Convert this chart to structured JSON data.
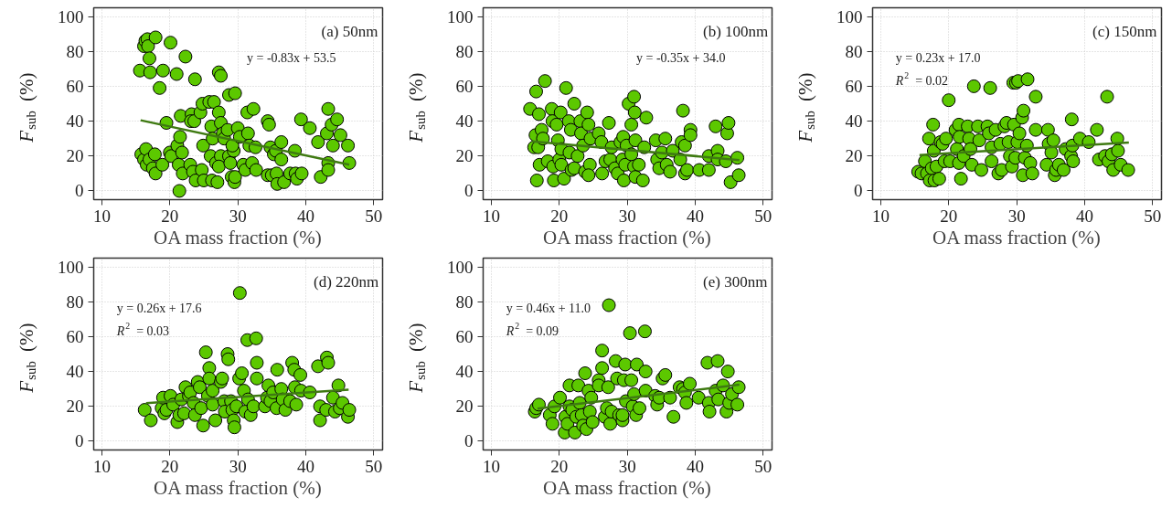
{
  "chart_data": [
    {
      "type": "scatter",
      "title": "(a) 50nm",
      "xlabel": "OA mass fraction (%)",
      "ylabel": "F$_{sub}$ (%)",
      "xlim": [
        8.8,
        51.3
      ],
      "ylim": [
        -5,
        105
      ],
      "xticks": [
        10,
        20,
        30,
        40,
        50
      ],
      "yticks": [
        0,
        20,
        40,
        60,
        80,
        100
      ],
      "grid": true,
      "annotations": [
        "y = -0.83x + 53.5"
      ],
      "series": [
        {
          "marker": "circle",
          "color": "#5cc800",
          "x": [
            15.6,
            16.2,
            16.4,
            16.7,
            16.8,
            17.0,
            17.1,
            17.9,
            18.5,
            19.0,
            20.1,
            21.0,
            22.3,
            23.7,
            27.2,
            27.5,
            28.7,
            29.6,
            15.8,
            16.2,
            16.5,
            16.6,
            17.0,
            17.5,
            17.8,
            17.9,
            18.9,
            19.5,
            20.0,
            20.2,
            21.1,
            21.3,
            21.4,
            21.5,
            21.6,
            21.8,
            21.9,
            23.2,
            23.1,
            23.6,
            23.0,
            23.4,
            23.8,
            24.5,
            24.8,
            24.9,
            24.7,
            25.0,
            25.8,
            26.5,
            26.1,
            26.3,
            26.0,
            26.2,
            26.8,
            27.2,
            27.5,
            27.0,
            27.5,
            27.2,
            27.8,
            28.0,
            28.5,
            28.7,
            28.9,
            29.1,
            29.5,
            29.6,
            29.4,
            29.2,
            30.0,
            30.3,
            30.8,
            31.1,
            31.4,
            31.5,
            31.7,
            32.3,
            32.1,
            32.6,
            32.7,
            34.4,
            34.6,
            34.8,
            34.4,
            35.0,
            35.3,
            35.6,
            35.7,
            35.8,
            36.4,
            36.4,
            36.8,
            37.7,
            38.4,
            38.5,
            38.7,
            39.4,
            39.3,
            40.6,
            41.8,
            42.2,
            43.1,
            43.3,
            43.3,
            43.3,
            43.8,
            44.0,
            44.6,
            45.1,
            46.2,
            46.4
          ],
          "values": [
            69,
            83,
            86,
            87,
            83,
            76,
            68,
            88,
            59,
            69,
            85,
            67,
            77,
            64,
            68,
            66,
            55,
            56,
            21,
            18,
            24,
            15,
            18,
            13,
            21,
            10,
            15,
            39,
            22,
            20,
            26,
            15,
            0,
            31,
            43,
            22,
            10,
            44,
            40,
            40,
            15,
            11,
            6,
            45,
            50,
            26,
            12,
            6,
            51,
            51,
            37,
            30,
            20,
            6,
            16,
            45,
            39,
            5,
            20,
            14,
            33,
            30,
            35,
            20,
            16,
            8,
            5,
            8,
            23,
            26,
            36,
            31,
            15,
            12,
            45,
            33,
            26,
            47,
            16,
            25,
            12,
            40,
            38,
            25,
            9,
            9,
            21,
            23,
            10,
            4,
            28,
            18,
            5,
            10,
            23,
            10,
            7,
            10,
            41,
            36,
            28,
            8,
            33,
            47,
            16,
            12,
            38,
            26,
            41,
            32,
            26,
            16
          ]
        },
        {
          "type": "line",
          "color": "#3f7a12",
          "x": [
            15.7,
            46.4
          ],
          "values": [
            40.5,
            15.0
          ]
        }
      ]
    },
    {
      "type": "scatter",
      "title": "(b) 100nm",
      "xlabel": "OA mass fraction (%)",
      "ylabel": "F$_{sub}$ (%)",
      "xlim": [
        8.8,
        51.3
      ],
      "ylim": [
        -5,
        105
      ],
      "xticks": [
        10,
        20,
        30,
        40,
        50
      ],
      "yticks": [
        0,
        20,
        40,
        60,
        80,
        100
      ],
      "grid": true,
      "annotations": [
        "y = -0.35x + 34.0"
      ],
      "series": [
        {
          "marker": "circle",
          "color": "#5cc800",
          "x": [
            15.7,
            16.3,
            16.5,
            16.6,
            16.7,
            16.9,
            17.0,
            17.1,
            17.4,
            17.6,
            17.9,
            18.3,
            18.9,
            19.0,
            19.1,
            19.2,
            19.6,
            19.8,
            20.2,
            20.0,
            20.3,
            20.3,
            20.7,
            21.0,
            21.4,
            21.5,
            21.7,
            21.8,
            22.2,
            22.2,
            22.7,
            23.1,
            23.2,
            23.5,
            23.8,
            24.1,
            24.3,
            24.6,
            24.5,
            24.3,
            25.8,
            26.2,
            26.3,
            26.8,
            27.3,
            27.5,
            27.7,
            28.2,
            28.6,
            29.0,
            29.3,
            29.4,
            29.5,
            29.7,
            29.9,
            30.2,
            30.6,
            30.6,
            31.0,
            31.1,
            31.2,
            31.0,
            31.2,
            31.7,
            32.3,
            32.5,
            32.8,
            34.2,
            34.4,
            34.7,
            35.1,
            35.6,
            35.8,
            36.3,
            36.7,
            37.8,
            38.0,
            38.2,
            38.5,
            38.5,
            38.8,
            39.3,
            39.3,
            40.6,
            42.0,
            42.0,
            43.0,
            43.3,
            43.3,
            44.5,
            44.7,
            44.9,
            45.2,
            46.2,
            46.4
          ],
          "values": [
            47,
            25,
            32,
            57,
            6,
            25,
            44,
            15,
            35,
            30,
            63,
            17,
            47,
            40,
            14,
            6,
            38,
            29,
            45,
            18,
            24,
            15,
            7,
            59,
            40,
            22,
            35,
            12,
            50,
            13,
            20,
            40,
            33,
            26,
            11,
            45,
            38,
            30,
            15,
            9,
            33,
            28,
            10,
            17,
            39,
            18,
            25,
            13,
            10,
            28,
            18,
            31,
            6,
            15,
            26,
            50,
            38,
            21,
            54,
            45,
            29,
            14,
            8,
            15,
            6,
            25,
            42,
            29,
            18,
            13,
            22,
            30,
            15,
            11,
            23,
            18,
            28,
            46,
            26,
            10,
            12,
            35,
            32,
            12,
            20,
            12,
            37,
            23,
            18,
            17,
            33,
            39,
            5,
            19,
            9
          ]
        },
        {
          "type": "line",
          "color": "#3f7a12",
          "x": [
            16.0,
            46.5
          ],
          "values": [
            28.4,
            17.7
          ]
        }
      ]
    },
    {
      "type": "scatter",
      "title": "(c) 150nm",
      "xlabel": "OA mass fraction (%)",
      "ylabel": "F$_{sub}$ (%)",
      "xlim": [
        8.8,
        51.3
      ],
      "ylim": [
        -5,
        105
      ],
      "xticks": [
        10,
        20,
        30,
        40,
        50
      ],
      "yticks": [
        0,
        20,
        40,
        60,
        80,
        100
      ],
      "grid": true,
      "annotations": [
        "y = 0.23x + 17.0",
        "R$^{2}$ = 0.02"
      ],
      "series": [
        {
          "marker": "circle",
          "color": "#5cc800",
          "x": [
            15.5,
            16.0,
            16.5,
            16.8,
            17.1,
            17.2,
            17.5,
            17.7,
            17.8,
            17.9,
            18.2,
            18.6,
            18.8,
            19.1,
            19.4,
            19.6,
            20.0,
            20.2,
            21.0,
            21.2,
            21.5,
            21.6,
            21.5,
            21.8,
            22.2,
            22.8,
            23.0,
            23.2,
            23.4,
            23.7,
            24.3,
            24.5,
            24.8,
            25.7,
            25.9,
            26.1,
            26.3,
            26.3,
            26.9,
            27.3,
            27.6,
            27.8,
            28.2,
            28.5,
            28.8,
            29.0,
            29.3,
            29.5,
            29.6,
            29.9,
            30.2,
            30.1,
            29.8,
            30.4,
            30.8,
            31.0,
            30.9,
            31.2,
            31.6,
            31.5,
            32.0,
            32.3,
            32.8,
            32.8,
            34.4,
            34.6,
            34.7,
            35.1,
            35.4,
            35.6,
            35.8,
            36.2,
            36.9,
            37.2,
            38.0,
            38.1,
            38.2,
            38.3,
            39.3,
            40.6,
            41.8,
            42.1,
            43.3,
            43.0,
            43.5,
            44.0,
            44.2,
            44.8,
            44.9,
            45.3,
            46.4
          ],
          "values": [
            11,
            10,
            17,
            10,
            30,
            6,
            13,
            38,
            23,
            6,
            14,
            7,
            28,
            27,
            17,
            30,
            52,
            17,
            35,
            24,
            38,
            31,
            16,
            7,
            20,
            37,
            30,
            24,
            15,
            60,
            37,
            29,
            12,
            37,
            33,
            59,
            25,
            17,
            35,
            10,
            27,
            12,
            37,
            39,
            28,
            20,
            14,
            62,
            38,
            62,
            63,
            28,
            19,
            33,
            42,
            46,
            9,
            19,
            64,
            26,
            16,
            10,
            54,
            35,
            15,
            35,
            27,
            22,
            29,
            9,
            12,
            15,
            12,
            24,
            20,
            41,
            26,
            17,
            30,
            28,
            35,
            18,
            54,
            20,
            17,
            21,
            12,
            30,
            23,
            15,
            12
          ]
        },
        {
          "type": "line",
          "color": "#3f7a12",
          "x": [
            15.7,
            46.5
          ],
          "values": [
            20.6,
            27.7
          ]
        }
      ]
    },
    {
      "type": "scatter",
      "title": "(d) 220nm",
      "xlabel": "OA mass fraction (%)",
      "ylabel": "F$_{sub}$ (%)",
      "xlim": [
        8.8,
        51.3
      ],
      "ylim": [
        -5,
        105
      ],
      "xticks": [
        10,
        20,
        30,
        40,
        50
      ],
      "yticks": [
        0,
        20,
        40,
        60,
        80,
        100
      ],
      "grid": true,
      "annotations": [
        "y = 0.26x + 17.6",
        "R$^{2}$ = 0.03"
      ],
      "series": [
        {
          "marker": "circle",
          "color": "#5cc800",
          "x": [
            16.3,
            17.2,
            18.8,
            19.0,
            19.2,
            19.5,
            20.1,
            20.5,
            21.1,
            21.4,
            21.7,
            22.1,
            22.3,
            22.8,
            23.0,
            23.5,
            23.7,
            24.1,
            24.4,
            24.6,
            24.9,
            25.3,
            25.6,
            25.8,
            25.8,
            26.3,
            26.3,
            26.7,
            27.5,
            27.7,
            28.0,
            28.1,
            28.5,
            28.6,
            29.0,
            29.2,
            29.4,
            29.5,
            29.8,
            30.2,
            30.3,
            30.6,
            30.9,
            31.1,
            31.4,
            31.5,
            31.9,
            32.3,
            32.7,
            32.8,
            32.8,
            34.0,
            34.3,
            34.5,
            34.8,
            35.2,
            35.8,
            35.7,
            36.4,
            36.6,
            37.0,
            37.7,
            38.0,
            38.3,
            38.4,
            38.6,
            39.2,
            39.3,
            40.6,
            41.8,
            42.1,
            42.1,
            43.0,
            43.1,
            43.3,
            44.0,
            44.3,
            44.8,
            45.0,
            45.4,
            46.2,
            46.4
          ],
          "values": [
            18,
            12,
            19,
            25,
            16,
            18,
            26,
            21,
            11,
            15,
            24,
            16,
            31,
            26,
            28,
            22,
            15,
            34,
            31,
            19,
            9,
            51,
            26,
            42,
            36,
            29,
            21,
            12,
            34,
            36,
            23,
            17,
            50,
            47,
            23,
            18,
            12,
            8,
            20,
            36,
            85,
            39,
            29,
            17,
            58,
            24,
            15,
            20,
            59,
            45,
            36,
            20,
            25,
            32,
            23,
            28,
            41,
            19,
            30,
            24,
            18,
            23,
            45,
            41,
            31,
            21,
            38,
            29,
            28,
            43,
            20,
            12,
            18,
            48,
            45,
            25,
            17,
            32,
            19,
            22,
            14,
            18
          ]
        },
        {
          "type": "line",
          "color": "#3f7a12",
          "x": [
            16.5,
            46.3
          ],
          "values": [
            21.9,
            29.6
          ]
        }
      ]
    },
    {
      "type": "scatter",
      "title": "(e) 300nm",
      "xlabel": "OA mass fraction (%)",
      "ylabel": "F$_{sub}$ (%)",
      "xlim": [
        8.8,
        51.3
      ],
      "ylim": [
        -5,
        105
      ],
      "xticks": [
        10,
        20,
        30,
        40,
        50
      ],
      "yticks": [
        0,
        20,
        40,
        60,
        80,
        100
      ],
      "grid": true,
      "annotations": [
        "y = 0.46x + 11.0",
        "R$^{2}$ = 0.09"
      ],
      "series": [
        {
          "marker": "circle",
          "color": "#5cc800",
          "x": [
            16.4,
            16.6,
            17.0,
            18.6,
            19.0,
            19.3,
            20.1,
            20.8,
            20.9,
            21.2,
            21.5,
            21.5,
            21.9,
            22.3,
            22.5,
            22.8,
            23.0,
            23.3,
            23.5,
            23.8,
            24.0,
            24.3,
            24.5,
            24.7,
            24.9,
            25.8,
            25.8,
            26.3,
            26.3,
            26.7,
            27.0,
            27.3,
            27.2,
            27.5,
            27.7,
            28.3,
            28.5,
            28.8,
            29.3,
            29.5,
            29.3,
            29.7,
            29.8,
            30.4,
            30.6,
            30.8,
            31.0,
            31.3,
            31.4,
            31.8,
            32.6,
            32.7,
            32.7,
            34.1,
            34.4,
            34.7,
            35.2,
            35.6,
            36.3,
            36.8,
            37.7,
            38.2,
            38.5,
            38.7,
            39.2,
            40.5,
            41.8,
            42.0,
            42.1,
            43.0,
            43.3,
            43.4,
            44.1,
            44.6,
            44.8,
            45.0,
            45.4,
            46.2,
            46.4
          ],
          "values": [
            17,
            19,
            21,
            15,
            10,
            20,
            25,
            5,
            14,
            10,
            20,
            32,
            18,
            5,
            14,
            32,
            22,
            15,
            9,
            39,
            7,
            29,
            17,
            25,
            11,
            35,
            32,
            52,
            42,
            14,
            19,
            78,
            31,
            10,
            17,
            46,
            36,
            15,
            12,
            35,
            15,
            44,
            23,
            62,
            35,
            20,
            27,
            15,
            44,
            19,
            63,
            40,
            29,
            26,
            21,
            25,
            36,
            38,
            25,
            14,
            31,
            30,
            28,
            22,
            33,
            25,
            45,
            22,
            17,
            29,
            46,
            24,
            32,
            17,
            40,
            22,
            27,
            21,
            31
          ]
        },
        {
          "type": "line",
          "color": "#3f7a12",
          "x": [
            16.8,
            46.5
          ],
          "values": [
            18.7,
            32.4
          ]
        }
      ]
    }
  ]
}
